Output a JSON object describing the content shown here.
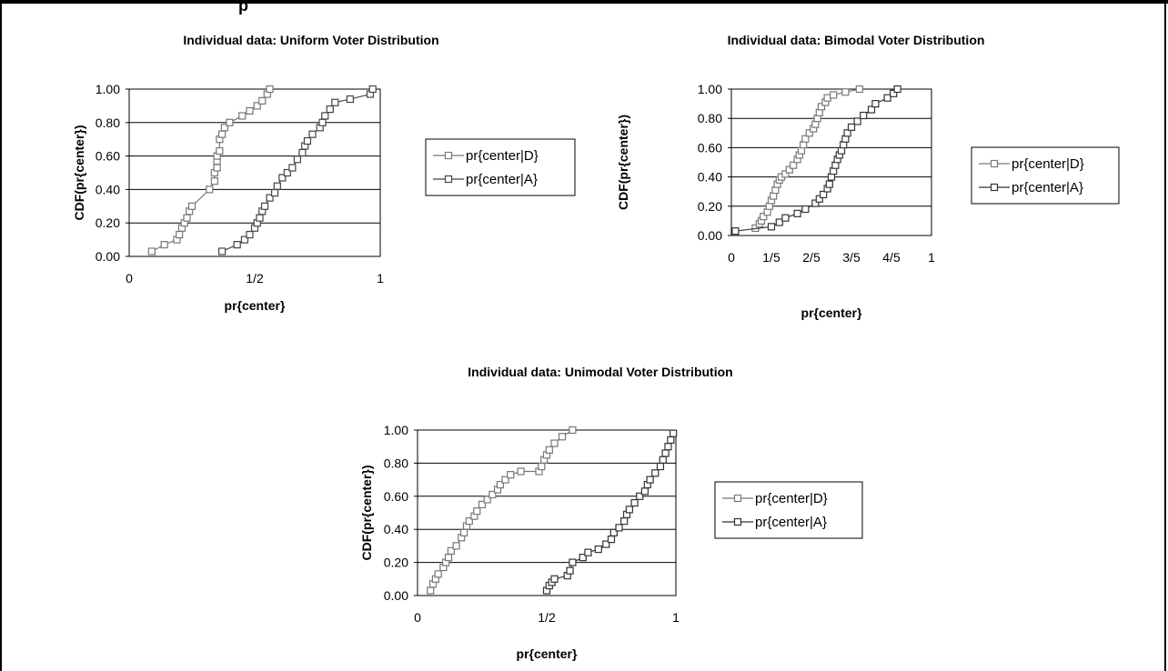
{
  "header_fragment": "p",
  "chart_data": [
    {
      "type": "scatter",
      "title": "Individual data: Uniform Voter Distribution",
      "xlabel": "pr{center}",
      "ylabel": "CDF(pr{center})",
      "xlim": [
        0,
        1
      ],
      "ylim": [
        0,
        1
      ],
      "xticks": [
        "0",
        "1/2",
        "1"
      ],
      "yticks": [
        "0.00",
        "0.20",
        "0.40",
        "0.60",
        "0.80",
        "1.00"
      ],
      "grid": "horizontal",
      "legend": "right",
      "series": [
        {
          "name": "pr{center|D}",
          "color": "#777777",
          "x": [
            0.09,
            0.14,
            0.19,
            0.2,
            0.21,
            0.22,
            0.23,
            0.24,
            0.25,
            0.32,
            0.34,
            0.34,
            0.35,
            0.35,
            0.35,
            0.36,
            0.36,
            0.37,
            0.38,
            0.4,
            0.45,
            0.48,
            0.51,
            0.53,
            0.55,
            0.56
          ],
          "y": [
            0.03,
            0.07,
            0.1,
            0.13,
            0.17,
            0.2,
            0.23,
            0.27,
            0.3,
            0.4,
            0.45,
            0.5,
            0.53,
            0.57,
            0.6,
            0.63,
            0.7,
            0.73,
            0.77,
            0.8,
            0.84,
            0.87,
            0.9,
            0.93,
            0.97,
            1.0
          ]
        },
        {
          "name": "pr{center|A}",
          "color": "#444444",
          "x": [
            0.37,
            0.43,
            0.46,
            0.48,
            0.5,
            0.51,
            0.52,
            0.53,
            0.54,
            0.56,
            0.58,
            0.59,
            0.61,
            0.63,
            0.65,
            0.67,
            0.69,
            0.7,
            0.71,
            0.73,
            0.76,
            0.77,
            0.78,
            0.8,
            0.82,
            0.88,
            0.96,
            0.97
          ],
          "y": [
            0.03,
            0.07,
            0.1,
            0.13,
            0.17,
            0.2,
            0.23,
            0.27,
            0.3,
            0.35,
            0.38,
            0.42,
            0.47,
            0.5,
            0.53,
            0.58,
            0.62,
            0.66,
            0.69,
            0.73,
            0.77,
            0.8,
            0.84,
            0.88,
            0.92,
            0.94,
            0.97,
            1.0
          ]
        }
      ]
    },
    {
      "type": "scatter",
      "title": "Individual data: Bimodal Voter Distribution",
      "xlabel": "pr{center}",
      "ylabel": "CDF(pr{center})",
      "xlim": [
        0,
        1
      ],
      "ylim": [
        0,
        1
      ],
      "xticks": [
        "0",
        "1/5",
        "2/5",
        "3/5",
        "4/5",
        "1"
      ],
      "yticks": [
        "0.00",
        "0.20",
        "0.40",
        "0.60",
        "0.80",
        "1.00"
      ],
      "grid": "horizontal",
      "legend": "right",
      "series": [
        {
          "name": "pr{center|D}",
          "color": "#777777",
          "x": [
            0.12,
            0.14,
            0.15,
            0.16,
            0.18,
            0.19,
            0.2,
            0.21,
            0.22,
            0.23,
            0.24,
            0.25,
            0.27,
            0.29,
            0.31,
            0.33,
            0.34,
            0.35,
            0.36,
            0.37,
            0.39,
            0.41,
            0.42,
            0.43,
            0.44,
            0.45,
            0.47,
            0.48,
            0.51,
            0.57,
            0.64
          ],
          "y": [
            0.05,
            0.08,
            0.1,
            0.13,
            0.16,
            0.2,
            0.24,
            0.27,
            0.31,
            0.35,
            0.38,
            0.4,
            0.42,
            0.45,
            0.48,
            0.52,
            0.55,
            0.58,
            0.62,
            0.66,
            0.7,
            0.73,
            0.76,
            0.8,
            0.84,
            0.88,
            0.91,
            0.94,
            0.96,
            0.98,
            1.0
          ]
        },
        {
          "name": "pr{center|A}",
          "color": "#333333",
          "x": [
            0.02,
            0.2,
            0.24,
            0.27,
            0.33,
            0.37,
            0.42,
            0.44,
            0.46,
            0.48,
            0.49,
            0.5,
            0.51,
            0.52,
            0.53,
            0.54,
            0.55,
            0.56,
            0.57,
            0.58,
            0.6,
            0.63,
            0.66,
            0.7,
            0.72,
            0.78,
            0.81,
            0.83
          ],
          "y": [
            0.03,
            0.06,
            0.09,
            0.12,
            0.15,
            0.18,
            0.22,
            0.25,
            0.28,
            0.32,
            0.35,
            0.4,
            0.44,
            0.48,
            0.52,
            0.55,
            0.58,
            0.62,
            0.66,
            0.7,
            0.74,
            0.78,
            0.82,
            0.86,
            0.9,
            0.94,
            0.97,
            1.0
          ]
        }
      ]
    },
    {
      "type": "scatter",
      "title": "Individual data: Unimodal Voter Distribution",
      "xlabel": "pr{center}",
      "ylabel": "CDF(pr{center})",
      "xlim": [
        0,
        1
      ],
      "ylim": [
        0,
        1
      ],
      "xticks": [
        "0",
        "1/2",
        "1"
      ],
      "yticks": [
        "0.00",
        "0.20",
        "0.40",
        "0.60",
        "0.80",
        "1.00"
      ],
      "grid": "horizontal",
      "legend": "right",
      "series": [
        {
          "name": "pr{center|D}",
          "color": "#777777",
          "x": [
            0.05,
            0.06,
            0.07,
            0.08,
            0.1,
            0.11,
            0.12,
            0.13,
            0.15,
            0.17,
            0.18,
            0.19,
            0.2,
            0.22,
            0.23,
            0.25,
            0.27,
            0.29,
            0.31,
            0.32,
            0.34,
            0.36,
            0.4,
            0.47,
            0.48,
            0.49,
            0.5,
            0.51,
            0.53,
            0.56,
            0.6
          ],
          "y": [
            0.03,
            0.07,
            0.1,
            0.13,
            0.17,
            0.2,
            0.23,
            0.27,
            0.3,
            0.35,
            0.38,
            0.42,
            0.45,
            0.48,
            0.51,
            0.55,
            0.58,
            0.61,
            0.64,
            0.67,
            0.7,
            0.73,
            0.75,
            0.75,
            0.78,
            0.82,
            0.85,
            0.88,
            0.92,
            0.96,
            1.0
          ]
        },
        {
          "name": "pr{center|A}",
          "color": "#333333",
          "x": [
            0.5,
            0.51,
            0.52,
            0.53,
            0.58,
            0.59,
            0.6,
            0.64,
            0.66,
            0.7,
            0.73,
            0.75,
            0.76,
            0.78,
            0.8,
            0.81,
            0.82,
            0.84,
            0.86,
            0.88,
            0.89,
            0.9,
            0.92,
            0.94,
            0.95,
            0.96,
            0.97,
            0.98,
            0.99
          ],
          "y": [
            0.03,
            0.06,
            0.08,
            0.1,
            0.12,
            0.15,
            0.2,
            0.23,
            0.26,
            0.28,
            0.31,
            0.34,
            0.38,
            0.41,
            0.45,
            0.49,
            0.52,
            0.56,
            0.6,
            0.63,
            0.67,
            0.7,
            0.74,
            0.78,
            0.82,
            0.86,
            0.9,
            0.94,
            0.98
          ]
        }
      ]
    }
  ]
}
